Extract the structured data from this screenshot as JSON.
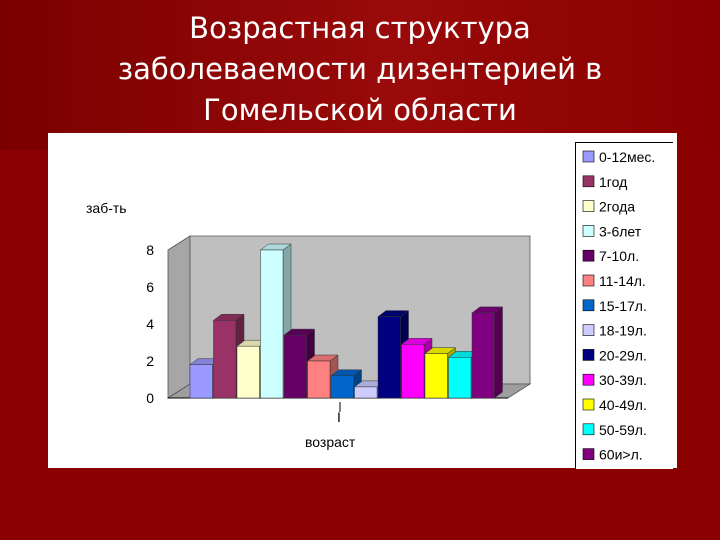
{
  "slide": {
    "title_lines": [
      "Возрастная структура",
      "заболеваемости дизентерией в",
      "Гомельской области"
    ]
  },
  "colors": {
    "background": "#8b0000",
    "title_text": "#ffffff",
    "chart_background": "#ffffff"
  },
  "chart_data": {
    "type": "bar",
    "ylabel": "заб-ть",
    "xlabel": "возраст",
    "categories": [
      "I"
    ],
    "ylim": [
      0,
      8
    ],
    "yticks": [
      "0",
      "2",
      "4",
      "6",
      "8"
    ],
    "grid": false,
    "legend_position": "right",
    "series": [
      {
        "name": "0-12мес.",
        "values": [
          1.8
        ],
        "color": "#9999ff"
      },
      {
        "name": "1год",
        "values": [
          4.2
        ],
        "color": "#993366"
      },
      {
        "name": "2года",
        "values": [
          2.8
        ],
        "color": "#ffffcc"
      },
      {
        "name": "3-6лет",
        "values": [
          8.0
        ],
        "color": "#ccffff"
      },
      {
        "name": "7-10л.",
        "values": [
          3.4
        ],
        "color": "#660066"
      },
      {
        "name": "11-14л.",
        "values": [
          2.0
        ],
        "color": "#ff8080"
      },
      {
        "name": "15-17л.",
        "values": [
          1.2
        ],
        "color": "#0066cc"
      },
      {
        "name": "18-19л.",
        "values": [
          0.6
        ],
        "color": "#ccccff"
      },
      {
        "name": "20-29л.",
        "values": [
          4.4
        ],
        "color": "#000080"
      },
      {
        "name": "30-39л.",
        "values": [
          2.9
        ],
        "color": "#ff00ff"
      },
      {
        "name": "40-49л.",
        "values": [
          2.4
        ],
        "color": "#ffff00"
      },
      {
        "name": "50-59л.",
        "values": [
          2.2
        ],
        "color": "#00ffff"
      },
      {
        "name": "60и>л.",
        "values": [
          4.6
        ],
        "color": "#800080"
      }
    ]
  }
}
